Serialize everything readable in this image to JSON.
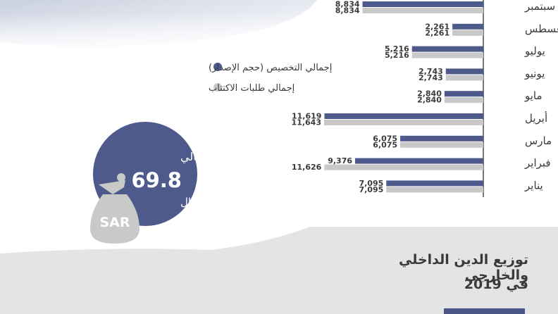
{
  "colors": {
    "allocation": "#4e5a8c",
    "subscription": "#c8c8c8",
    "text_dark": "#3a3a3a",
    "text_light": "#ffffff",
    "bag": "#c9c9c9",
    "panel": "#e4e4e6",
    "header_tint": "#dfe3ec"
  },
  "chart_data": {
    "type": "bar",
    "orientation": "horizontal",
    "categories": [
      "سبتمبر",
      "أغسطس",
      "يوليو",
      "يونيو",
      "مايو",
      "أبريل",
      "مارس",
      "فبراير",
      "يناير"
    ],
    "series": [
      {
        "name": "إجمالي التخصيص (حجم الإصدار)",
        "values": [
          8834,
          2261,
          5216,
          2743,
          2840,
          11619,
          6075,
          9376,
          7095
        ],
        "labels": [
          "8,834",
          "2,261",
          "5,216",
          "2,743",
          "2,840",
          "11,619",
          "6,075",
          "9,376",
          "7,095"
        ]
      },
      {
        "name": "إجمالي طلبات الاكتتاب",
        "values": [
          8834,
          2261,
          5216,
          2743,
          2840,
          11643,
          6075,
          11626,
          7095
        ],
        "labels": [
          "8,834",
          "2,261",
          "5,216",
          "2,743",
          "2,840",
          "11,643",
          "6,075",
          "11,626",
          "7,095"
        ]
      }
    ],
    "legend_position": "left",
    "axis_side": "right",
    "xlim": [
      0,
      11643
    ]
  },
  "summary": {
    "title": "الإجمالي",
    "value": "69.8",
    "unit": "مليار ريال",
    "bag_label": "SAR"
  },
  "footer": {
    "title_line1": "توزيع الدين الداخلي والخارجي",
    "title_line2": "في 2019"
  }
}
